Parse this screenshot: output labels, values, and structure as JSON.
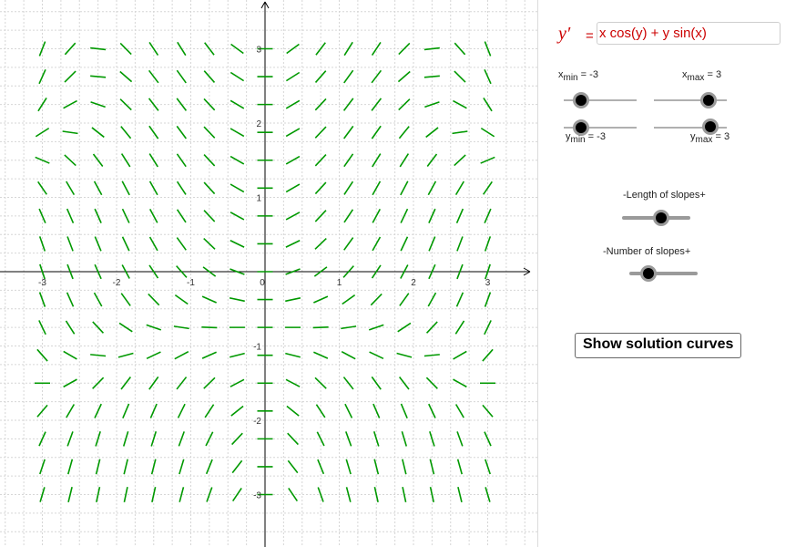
{
  "equation": {
    "lhs": "y′",
    "eq": "=",
    "value": "x cos(y) + y sin(x)"
  },
  "sliders": {
    "xmin": {
      "var": "x",
      "sub": "min",
      "text": " = -3",
      "value": -3
    },
    "xmax": {
      "var": "x",
      "sub": "max",
      "text": " = 3",
      "value": 3
    },
    "ymin": {
      "var": "y",
      "sub": "min",
      "text": " = -3",
      "value": -3
    },
    "ymax": {
      "var": "y",
      "sub": "max",
      "text": " = 3",
      "value": 3
    },
    "length": {
      "label": "-Length of slopes+"
    },
    "number": {
      "label": "-Number of slopes+"
    }
  },
  "button": {
    "label": "Show solution curves"
  },
  "axes": {
    "x_ticks": [
      "-3",
      "-2",
      "-1",
      "0",
      "1",
      "2",
      "3"
    ],
    "y_ticks": [
      "3",
      "2",
      "1",
      "-1",
      "-2",
      "-3"
    ]
  },
  "colors": {
    "slope": "#009900",
    "function": "#cc0000",
    "grid": "#d6d6d6",
    "axis": "#000000"
  }
}
